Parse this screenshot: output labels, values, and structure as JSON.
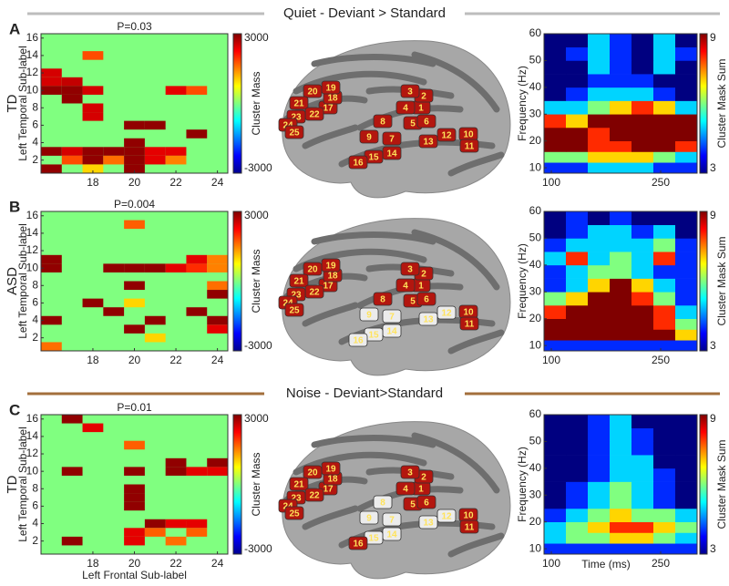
{
  "sections": [
    {
      "title": "Quiet  -  Deviant > Standard"
    },
    {
      "title": "Noise -  Deviant>Standard"
    }
  ],
  "brain_labels": [
    1,
    2,
    3,
    4,
    5,
    6,
    7,
    8,
    9,
    10,
    11,
    12,
    13,
    14,
    15,
    16,
    17,
    18,
    19,
    20,
    21,
    22,
    23,
    24,
    25
  ],
  "matrix_axes": {
    "type": "heatmap",
    "xlabel": "Left Frontal Sub-label",
    "ylabel": "Left Temporal Sub-label",
    "xlim": [
      15.5,
      24.5
    ],
    "ylim": [
      0.5,
      16.5
    ],
    "xticks": [
      18,
      20,
      22,
      24
    ],
    "yticks": [
      2,
      4,
      6,
      8,
      10,
      12,
      14,
      16
    ],
    "background": 0,
    "colorbar": {
      "label": "Cluster Mass",
      "lim": [
        -3000,
        3000
      ],
      "ticks": [
        -3000,
        3000
      ]
    }
  },
  "tf_axes": {
    "type": "heatmap",
    "xlabel": "Time (ms)",
    "ylabel": "Frequency (Hz)",
    "xlim": [
      90,
      300
    ],
    "ylim": [
      8,
      60
    ],
    "xticks": [
      100,
      250
    ],
    "yticks": [
      10,
      20,
      30,
      40,
      50,
      60
    ],
    "x_edges": [
      90,
      120,
      150,
      180,
      210,
      240,
      270,
      300
    ],
    "y_edges": [
      8,
      12,
      16,
      20,
      25,
      30,
      35,
      40,
      45,
      50,
      55,
      60
    ],
    "colorbar": {
      "label": "Cluster Mask Sum",
      "lim": [
        3,
        9
      ],
      "ticks": [
        3,
        9
      ]
    }
  },
  "panels": [
    {
      "letter": "A",
      "group": "TD",
      "section": 0,
      "p_value": "P=0.03",
      "cells": [
        [
          18,
          14,
          1800
        ],
        [
          16,
          12,
          2500
        ],
        [
          16,
          11,
          2500
        ],
        [
          17,
          11,
          2600
        ],
        [
          16,
          10,
          2900
        ],
        [
          17,
          10,
          2900
        ],
        [
          18,
          10,
          2500
        ],
        [
          22,
          10,
          2400
        ],
        [
          23,
          10,
          1800
        ],
        [
          17,
          9,
          2900
        ],
        [
          18,
          8,
          2500
        ],
        [
          18,
          7,
          2500
        ],
        [
          20,
          6,
          2900
        ],
        [
          21,
          6,
          2900
        ],
        [
          23,
          5,
          2900
        ],
        [
          20,
          4,
          2900
        ],
        [
          16,
          3,
          2900
        ],
        [
          17,
          3,
          2500
        ],
        [
          18,
          3,
          2900
        ],
        [
          19,
          3,
          2900
        ],
        [
          20,
          3,
          2900
        ],
        [
          21,
          3,
          2400
        ],
        [
          22,
          3,
          2400
        ],
        [
          17,
          2,
          1800
        ],
        [
          18,
          2,
          2900
        ],
        [
          19,
          2,
          1600
        ],
        [
          20,
          2,
          2900
        ],
        [
          21,
          2,
          2400
        ],
        [
          22,
          2,
          1500
        ],
        [
          16,
          1,
          2900
        ],
        [
          18,
          1,
          1000
        ],
        [
          20,
          1,
          2900
        ]
      ],
      "tf_values": [
        [
          4,
          4,
          5,
          5,
          5,
          4,
          4
        ],
        [
          6,
          6,
          7,
          7,
          7,
          6,
          5
        ],
        [
          9,
          9,
          8,
          8,
          9,
          9,
          8
        ],
        [
          9,
          9,
          8,
          9,
          9,
          9,
          9
        ],
        [
          8,
          7,
          9,
          9,
          9,
          9,
          9
        ],
        [
          5,
          5,
          6,
          7,
          8,
          7,
          5
        ],
        [
          3,
          4,
          5,
          5,
          5,
          4,
          3
        ],
        [
          3,
          3,
          4,
          4,
          4,
          3,
          3
        ],
        [
          3,
          3,
          5,
          4,
          3,
          5,
          3
        ],
        [
          3,
          4,
          5,
          4,
          3,
          5,
          4
        ],
        [
          3,
          3,
          5,
          4,
          3,
          5,
          3
        ]
      ],
      "significant_regions": [
        1,
        2,
        3,
        4,
        5,
        6,
        7,
        8,
        9,
        10,
        11,
        12,
        13,
        14,
        15,
        16,
        17,
        18,
        19,
        20,
        21,
        22,
        23,
        24,
        25
      ]
    },
    {
      "letter": "B",
      "group": "ASD",
      "section": 0,
      "p_value": "P=0.004",
      "cells": [
        [
          20,
          15,
          1700
        ],
        [
          16,
          11,
          2900
        ],
        [
          16,
          10,
          2900
        ],
        [
          19,
          10,
          2900
        ],
        [
          20,
          10,
          2900
        ],
        [
          21,
          10,
          2900
        ],
        [
          22,
          10,
          2400
        ],
        [
          23,
          11,
          2400
        ],
        [
          23,
          10,
          2000
        ],
        [
          24,
          10,
          1500
        ],
        [
          24,
          11,
          1500
        ],
        [
          20,
          8,
          2900
        ],
        [
          24,
          8,
          1600
        ],
        [
          24,
          7,
          2900
        ],
        [
          18,
          6,
          2900
        ],
        [
          20,
          6,
          1000
        ],
        [
          19,
          5,
          2900
        ],
        [
          23,
          5,
          2900
        ],
        [
          16,
          4,
          2900
        ],
        [
          21,
          4,
          2900
        ],
        [
          24,
          4,
          2900
        ],
        [
          20,
          3,
          2900
        ],
        [
          24,
          3,
          2400
        ],
        [
          21,
          2,
          1000
        ],
        [
          16,
          1,
          1600
        ]
      ],
      "tf_values": [
        [
          4,
          4,
          4,
          4,
          4,
          4,
          4
        ],
        [
          9,
          9,
          9,
          9,
          9,
          9,
          7
        ],
        [
          9,
          9,
          9,
          9,
          9,
          8,
          6
        ],
        [
          8,
          9,
          9,
          9,
          9,
          8,
          5
        ],
        [
          6,
          7,
          9,
          9,
          8,
          6,
          4
        ],
        [
          4,
          5,
          7,
          9,
          7,
          5,
          4
        ],
        [
          4,
          5,
          6,
          6,
          5,
          4,
          4
        ],
        [
          5,
          8,
          5,
          6,
          5,
          8,
          4
        ],
        [
          4,
          5,
          5,
          5,
          5,
          6,
          4
        ],
        [
          3,
          4,
          5,
          5,
          4,
          5,
          3
        ],
        [
          3,
          4,
          3,
          4,
          3,
          3,
          3
        ]
      ],
      "significant_regions": [
        1,
        2,
        3,
        4,
        5,
        6,
        8,
        10,
        11,
        17,
        18,
        19,
        20,
        21,
        22,
        23,
        24,
        25
      ]
    },
    {
      "letter": "C",
      "group": "TD",
      "section": 1,
      "p_value": "P=0.01",
      "cells": [
        [
          17,
          16,
          2900
        ],
        [
          18,
          15,
          2400
        ],
        [
          20,
          13,
          1700
        ],
        [
          22,
          11,
          2900
        ],
        [
          24,
          11,
          2900
        ],
        [
          17,
          10,
          2900
        ],
        [
          20,
          10,
          2900
        ],
        [
          22,
          10,
          2900
        ],
        [
          23,
          10,
          2400
        ],
        [
          24,
          10,
          2400
        ],
        [
          20,
          8,
          2900
        ],
        [
          20,
          7,
          2900
        ],
        [
          20,
          6,
          2900
        ],
        [
          21,
          4,
          2900
        ],
        [
          22,
          4,
          2400
        ],
        [
          23,
          4,
          2400
        ],
        [
          20,
          3,
          2400
        ],
        [
          21,
          3,
          1700
        ],
        [
          23,
          3,
          1700
        ],
        [
          17,
          2,
          2900
        ],
        [
          20,
          2,
          2400
        ],
        [
          22,
          2,
          1600
        ]
      ],
      "tf_values": [
        [
          4,
          4,
          4,
          4,
          4,
          4,
          4
        ],
        [
          5,
          6,
          6,
          7,
          7,
          6,
          5
        ],
        [
          5,
          6,
          7,
          8,
          8,
          7,
          6
        ],
        [
          4,
          5,
          6,
          7,
          6,
          6,
          5
        ],
        [
          3,
          4,
          5,
          6,
          5,
          4,
          3
        ],
        [
          3,
          4,
          5,
          6,
          5,
          4,
          3
        ],
        [
          3,
          3,
          4,
          5,
          5,
          4,
          3
        ],
        [
          3,
          3,
          4,
          5,
          5,
          3,
          3
        ],
        [
          3,
          3,
          4,
          5,
          4,
          3,
          3
        ],
        [
          3,
          3,
          4,
          5,
          4,
          3,
          3
        ],
        [
          3,
          3,
          4,
          5,
          3,
          3,
          3
        ]
      ],
      "significant_regions": [
        1,
        2,
        3,
        4,
        5,
        6,
        10,
        11,
        16,
        17,
        18,
        19,
        20,
        21,
        22,
        23,
        24,
        25
      ]
    }
  ]
}
